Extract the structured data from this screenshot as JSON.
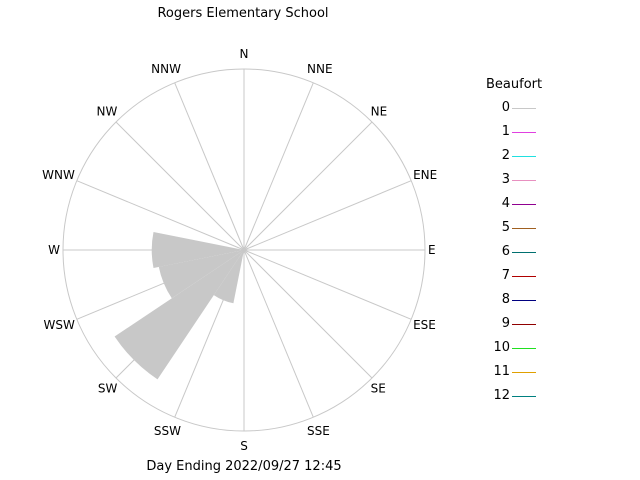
{
  "chart_data": {
    "type": "wind-rose",
    "title": "Rogers Elementary School",
    "footer": "Day Ending 2022/09/27 12:45",
    "directions": [
      "N",
      "NNE",
      "NE",
      "ENE",
      "E",
      "ESE",
      "SE",
      "SSE",
      "S",
      "SSW",
      "SW",
      "WSW",
      "W",
      "WNW",
      "NW",
      "NNW"
    ],
    "sectors": [
      {
        "direction": "N",
        "value": 0
      },
      {
        "direction": "NNE",
        "value": 0
      },
      {
        "direction": "NE",
        "value": 0
      },
      {
        "direction": "ENE",
        "value": 0
      },
      {
        "direction": "E",
        "value": 0
      },
      {
        "direction": "ESE",
        "value": 0
      },
      {
        "direction": "SE",
        "value": 0
      },
      {
        "direction": "SSE",
        "value": 0
      },
      {
        "direction": "S",
        "value": 0
      },
      {
        "direction": "SSW",
        "value": 0.3
      },
      {
        "direction": "SW",
        "value": 0.86
      },
      {
        "direction": "WSW",
        "value": 0.48
      },
      {
        "direction": "W",
        "value": 0.51
      },
      {
        "direction": "WNW",
        "value": 0
      },
      {
        "direction": "NW",
        "value": 0
      },
      {
        "direction": "NNW",
        "value": 0
      }
    ],
    "sector_color": "#c8c8c8",
    "grid_color": "#c8c8c8",
    "legend": {
      "title": "Beaufort",
      "items": [
        {
          "label": "0",
          "color": "#c8c8c8"
        },
        {
          "label": "1",
          "color": "#e040e0"
        },
        {
          "label": "2",
          "color": "#20e0e0"
        },
        {
          "label": "3",
          "color": "#e890c0"
        },
        {
          "label": "4",
          "color": "#900090"
        },
        {
          "label": "5",
          "color": "#a06020"
        },
        {
          "label": "6",
          "color": "#007070"
        },
        {
          "label": "7",
          "color": "#b00000"
        },
        {
          "label": "8",
          "color": "#000080"
        },
        {
          "label": "9",
          "color": "#900000"
        },
        {
          "label": "10",
          "color": "#20e020"
        },
        {
          "label": "11",
          "color": "#e0a000"
        },
        {
          "label": "12",
          "color": "#008080"
        }
      ]
    }
  }
}
